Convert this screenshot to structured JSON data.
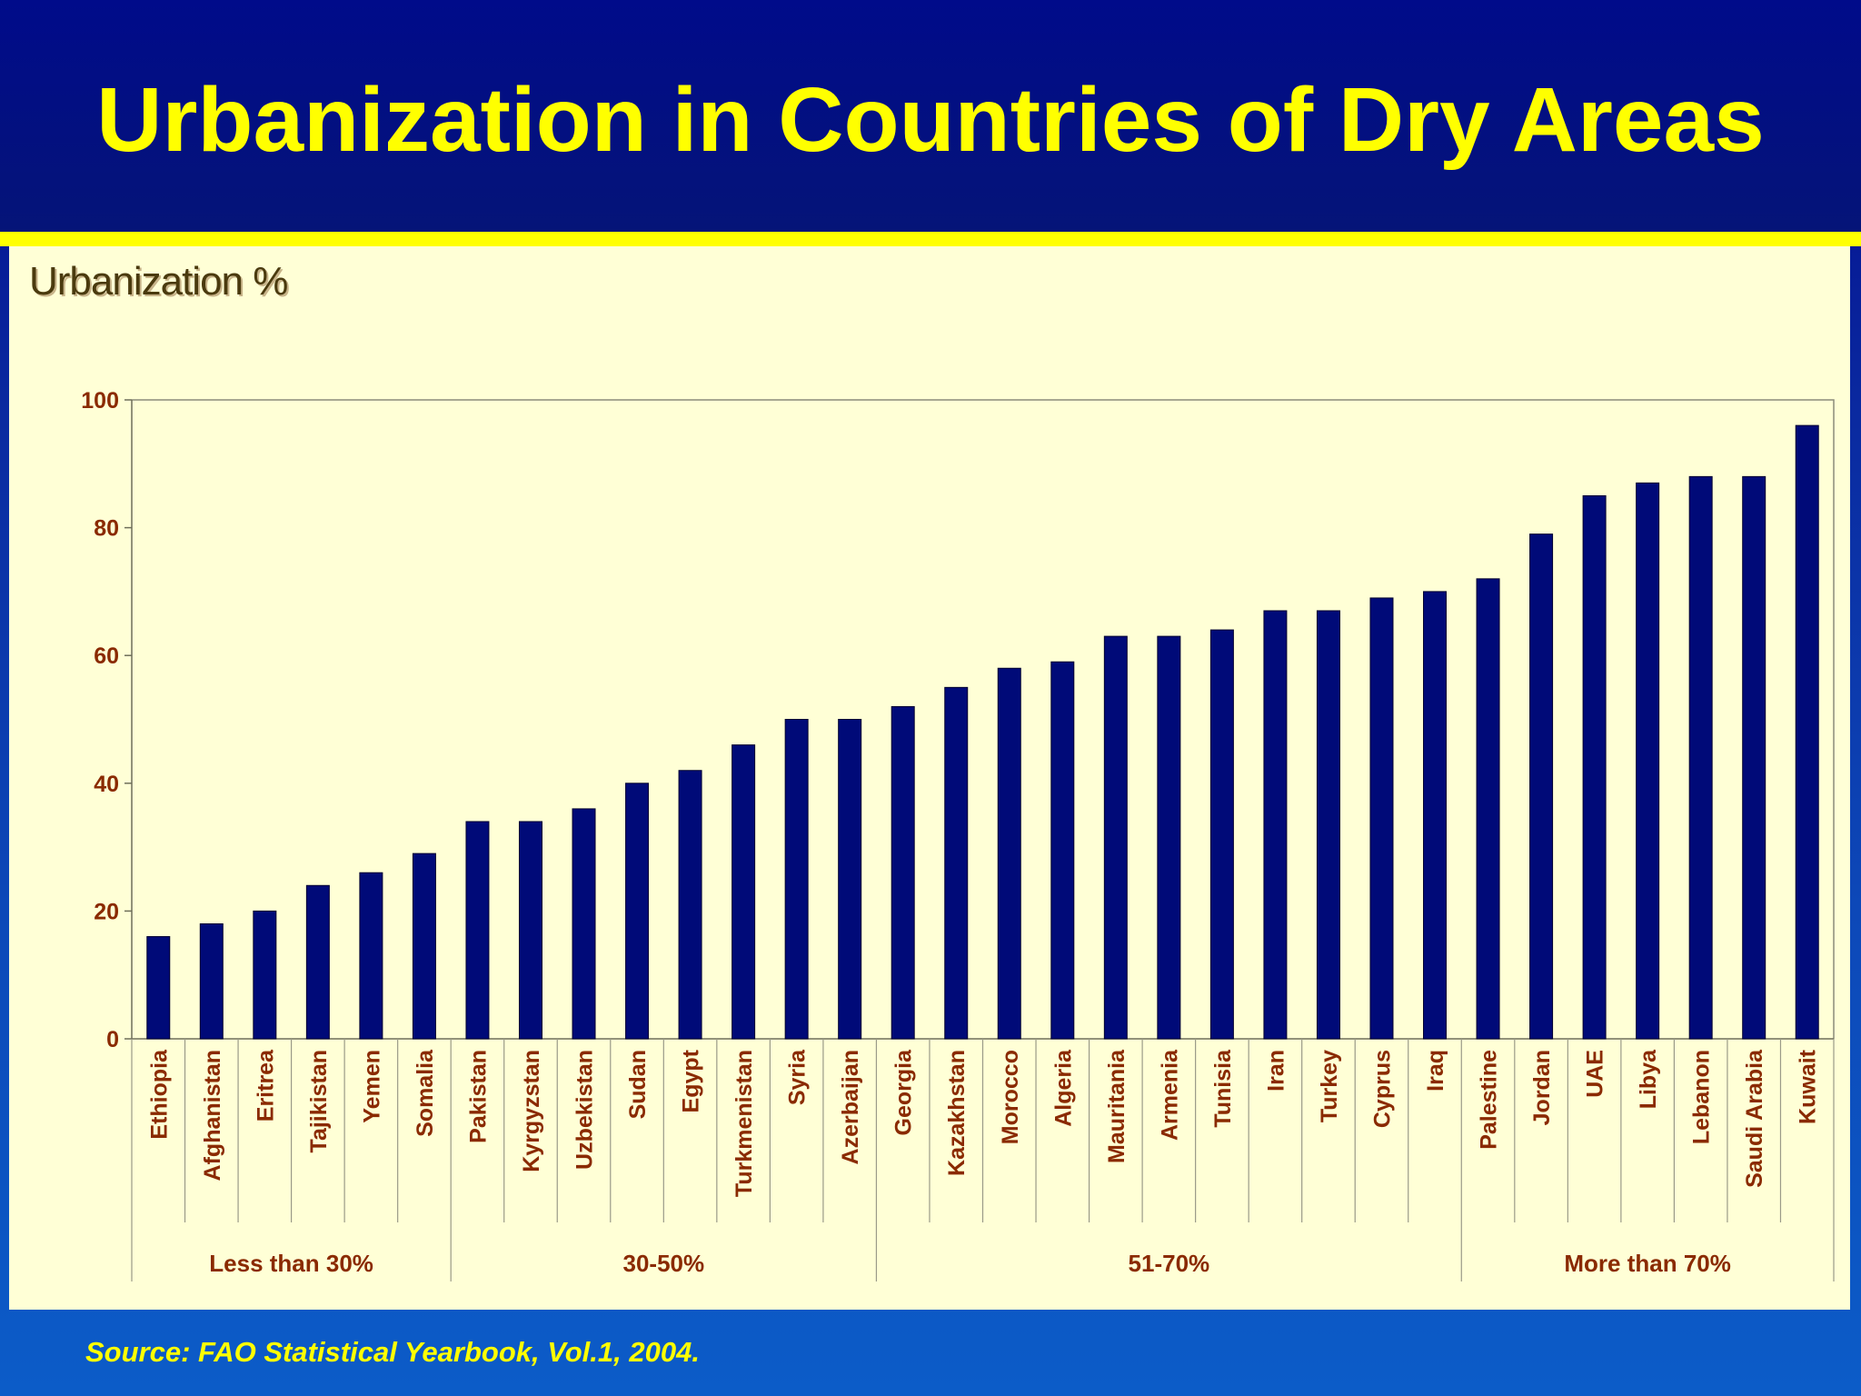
{
  "slide": {
    "title": "Urbanization in Countries of Dry Areas",
    "unit_label": "Urbanization %",
    "source": "Source: FAO Statistical Yearbook, Vol.1, 2004."
  },
  "colors": {
    "bar": "#000a78",
    "axis_text": "#8a2a00",
    "title": "#ffff00",
    "panel": "#ffffd6"
  },
  "chart_data": {
    "type": "bar",
    "title": "",
    "xlabel": "",
    "ylabel": "",
    "ylim": [
      0,
      100
    ],
    "yticks": [
      0,
      20,
      40,
      60,
      80,
      100
    ],
    "grid": false,
    "legend": "none",
    "categories": [
      "Ethiopia",
      "Afghanistan",
      "Eritrea",
      "Tajikistan",
      "Yemen",
      "Somalia",
      "Pakistan",
      "Kyrgyzstan",
      "Uzbekistan",
      "Sudan",
      "Egypt",
      "Turkmenistan",
      "Syria",
      "Azerbaijan",
      "Georgia",
      "Kazakhstan",
      "Morocco",
      "Algeria",
      "Mauritania",
      "Armenia",
      "Tunisia",
      "Iran",
      "Turkey",
      "Cyprus",
      "Iraq",
      "Palestine",
      "Jordan",
      "UAE",
      "Libya",
      "Lebanon",
      "Saudi Arabia",
      "Kuwait"
    ],
    "values": [
      16,
      18,
      20,
      24,
      26,
      29,
      34,
      34,
      36,
      40,
      42,
      46,
      50,
      50,
      52,
      55,
      58,
      59,
      63,
      63,
      64,
      67,
      67,
      69,
      70,
      72,
      79,
      85,
      87,
      88,
      88,
      96
    ],
    "groups": [
      {
        "label": "Less than 30%",
        "start": 0,
        "end": 5
      },
      {
        "label": "30-50%",
        "start": 6,
        "end": 13
      },
      {
        "label": "51-70%",
        "start": 14,
        "end": 24
      },
      {
        "label": "More than 70%",
        "start": 25,
        "end": 31
      }
    ]
  }
}
